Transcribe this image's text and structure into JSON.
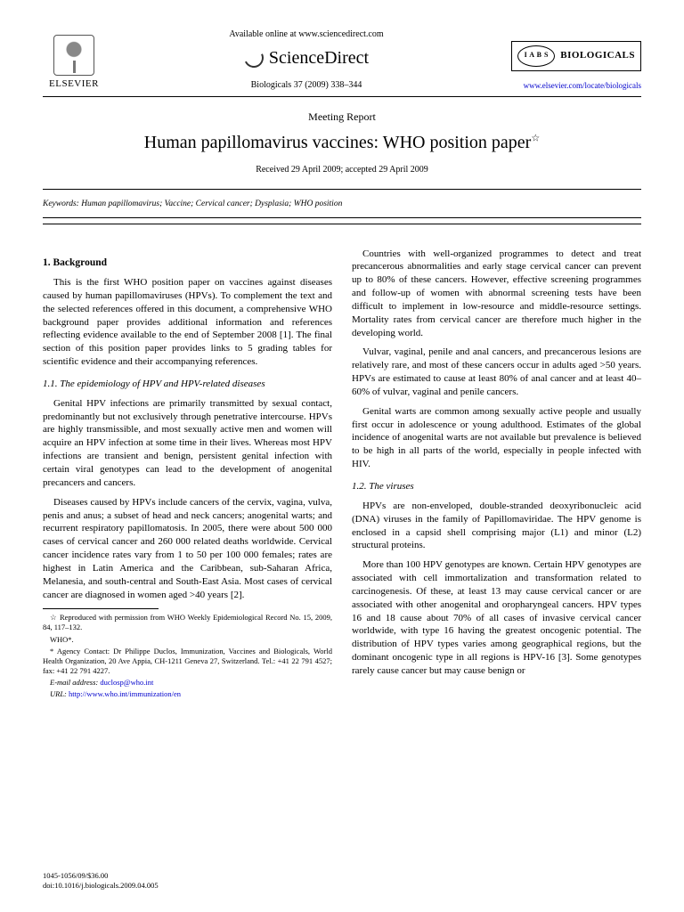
{
  "header": {
    "elsevier": "ELSEVIER",
    "avail": "Available online at www.sciencedirect.com",
    "sd": "ScienceDirect",
    "citation": "Biologicals 37 (2009) 338–344",
    "iabs": "I A B S",
    "journal": "BIOLOGICALS",
    "link": "www.elsevier.com/locate/biologicals"
  },
  "article": {
    "type": "Meeting Report",
    "title": "Human papillomavirus vaccines: WHO position paper",
    "star": "☆",
    "received": "Received 29 April 2009; accepted 29 April 2009"
  },
  "keywords": {
    "label": "Keywords:",
    "text": " Human papillomavirus; Vaccine; Cervical cancer; Dysplasia; WHO position"
  },
  "sections": {
    "s1": "1. Background",
    "p1": "This is the first WHO position paper on vaccines against diseases caused by human papillomaviruses (HPVs). To complement the text and the selected references offered in this document, a comprehensive WHO background paper provides additional information and references reflecting evidence available to the end of September 2008 [1]. The final section of this position paper provides links to 5 grading tables for scientific evidence and their accompanying references.",
    "s11": "1.1. The epidemiology of HPV and HPV-related diseases",
    "p2": "Genital HPV infections are primarily transmitted by sexual contact, predominantly but not exclusively through penetrative intercourse. HPVs are highly transmissible, and most sexually active men and women will acquire an HPV infection at some time in their lives. Whereas most HPV infections are transient and benign, persistent genital infection with certain viral genotypes can lead to the development of anogenital precancers and cancers.",
    "p3": "Diseases caused by HPVs include cancers of the cervix, vagina, vulva, penis and anus; a subset of head and neck cancers; anogenital warts; and recurrent respiratory papillomatosis. In 2005, there were about 500 000 cases of cervical cancer and 260 000 related deaths worldwide. Cervical cancer incidence rates vary from 1 to 50 per 100 000 females; rates are highest in Latin America and the Caribbean, sub-Saharan Africa, Melanesia, and south-central and South-East Asia. Most cases of cervical cancer are diagnosed in women aged >40 years [2].",
    "p4": "Countries with well-organized programmes to detect and treat precancerous abnormalities and early stage cervical cancer can prevent up to 80% of these cancers. However, effective screening programmes and follow-up of women with abnormal screening tests have been difficult to implement in low-resource and middle-resource settings. Mortality rates from cervical cancer are therefore much higher in the developing world.",
    "p5": "Vulvar, vaginal, penile and anal cancers, and precancerous lesions are relatively rare, and most of these cancers occur in adults aged >50 years. HPVs are estimated to cause at least 80% of anal cancer and at least 40–60% of vulvar, vaginal and penile cancers.",
    "p6": "Genital warts are common among sexually active people and usually first occur in adolescence or young adulthood. Estimates of the global incidence of anogenital warts are not available but prevalence is believed to be high in all parts of the world, especially in people infected with HIV.",
    "s12": "1.2. The viruses",
    "p7": "HPVs are non-enveloped, double-stranded deoxyribonucleic acid (DNA) viruses in the family of Papillomaviridae. The HPV genome is enclosed in a capsid shell comprising major (L1) and minor (L2) structural proteins.",
    "p8": "More than 100 HPV genotypes are known. Certain HPV genotypes are associated with cell immortalization and transformation related to carcinogenesis. Of these, at least 13 may cause cervical cancer or are associated with other anogenital and oropharyngeal cancers. HPV types 16 and 18 cause about 70% of all cases of invasive cervical cancer worldwide, with type 16 having the greatest oncogenic potential. The distribution of HPV types varies among geographical regions, but the dominant oncogenic type in all regions is HPV-16 [3]. Some genotypes rarely cause cancer but may cause benign or"
  },
  "footnotes": {
    "f1": "☆ Reproduced with permission from WHO Weekly Epidemiological Record No. 15, 2009, 84, 117–132.",
    "f2": "WHO*.",
    "f3": "* Agency Contact: Dr Philippe Duclos, Immunization, Vaccines and Biologicals, World Health Organization, 20 Ave Appia, CH-1211 Geneva 27, Switzerland. Tel.: +41 22 791 4527; fax: +41 22 791 4227.",
    "f4label": "E-mail address: ",
    "f4": "duclosp@who.int",
    "f5label": "URL: ",
    "f5": "http://www.who.int/immunization/en"
  },
  "footer": {
    "line1": "1045-1056/09/$36.00",
    "line2": "doi:10.1016/j.biologicals.2009.04.005"
  }
}
